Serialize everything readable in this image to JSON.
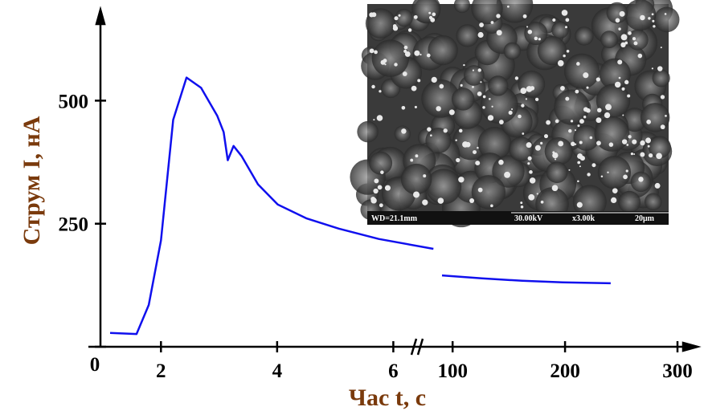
{
  "chart_data": {
    "type": "line",
    "ylabel": "Струм I, нА",
    "xlabel": "Час t, c",
    "ylim": [
      0,
      680
    ],
    "yticks": [
      {
        "value": 0,
        "label": "0"
      },
      250,
      500
    ],
    "xaxes": [
      {
        "xlim": [
          1,
          6.7
        ],
        "xticks": [
          2,
          4,
          6
        ]
      },
      {
        "xlim": [
          87,
          300
        ],
        "xticks": [
          100,
          200,
          300
        ]
      }
    ],
    "series": [
      {
        "color": "#1010ee",
        "xaxis": 0,
        "x": [
          1.125,
          1.58,
          1.79,
          2.0,
          2.21,
          2.44,
          2.69,
          2.97,
          3.08,
          3.15,
          3.25,
          3.39,
          3.67,
          4.01,
          4.5,
          5.06,
          5.75,
          6.69
        ],
        "values": [
          28,
          26,
          85,
          216,
          461,
          547,
          526,
          469,
          436,
          379,
          408,
          387,
          330,
          289,
          261,
          240,
          219,
          199
        ]
      },
      {
        "color": "#1010ee",
        "xaxis": 1,
        "x": [
          90.6,
          126,
          162,
          198,
          240.6
        ],
        "values": [
          145,
          139,
          134,
          131,
          129
        ]
      }
    ]
  },
  "inset": {
    "wd": "WD=21.1mm",
    "kv": "30.00kV",
    "mag": "x3.00k",
    "scale": "20μm"
  }
}
